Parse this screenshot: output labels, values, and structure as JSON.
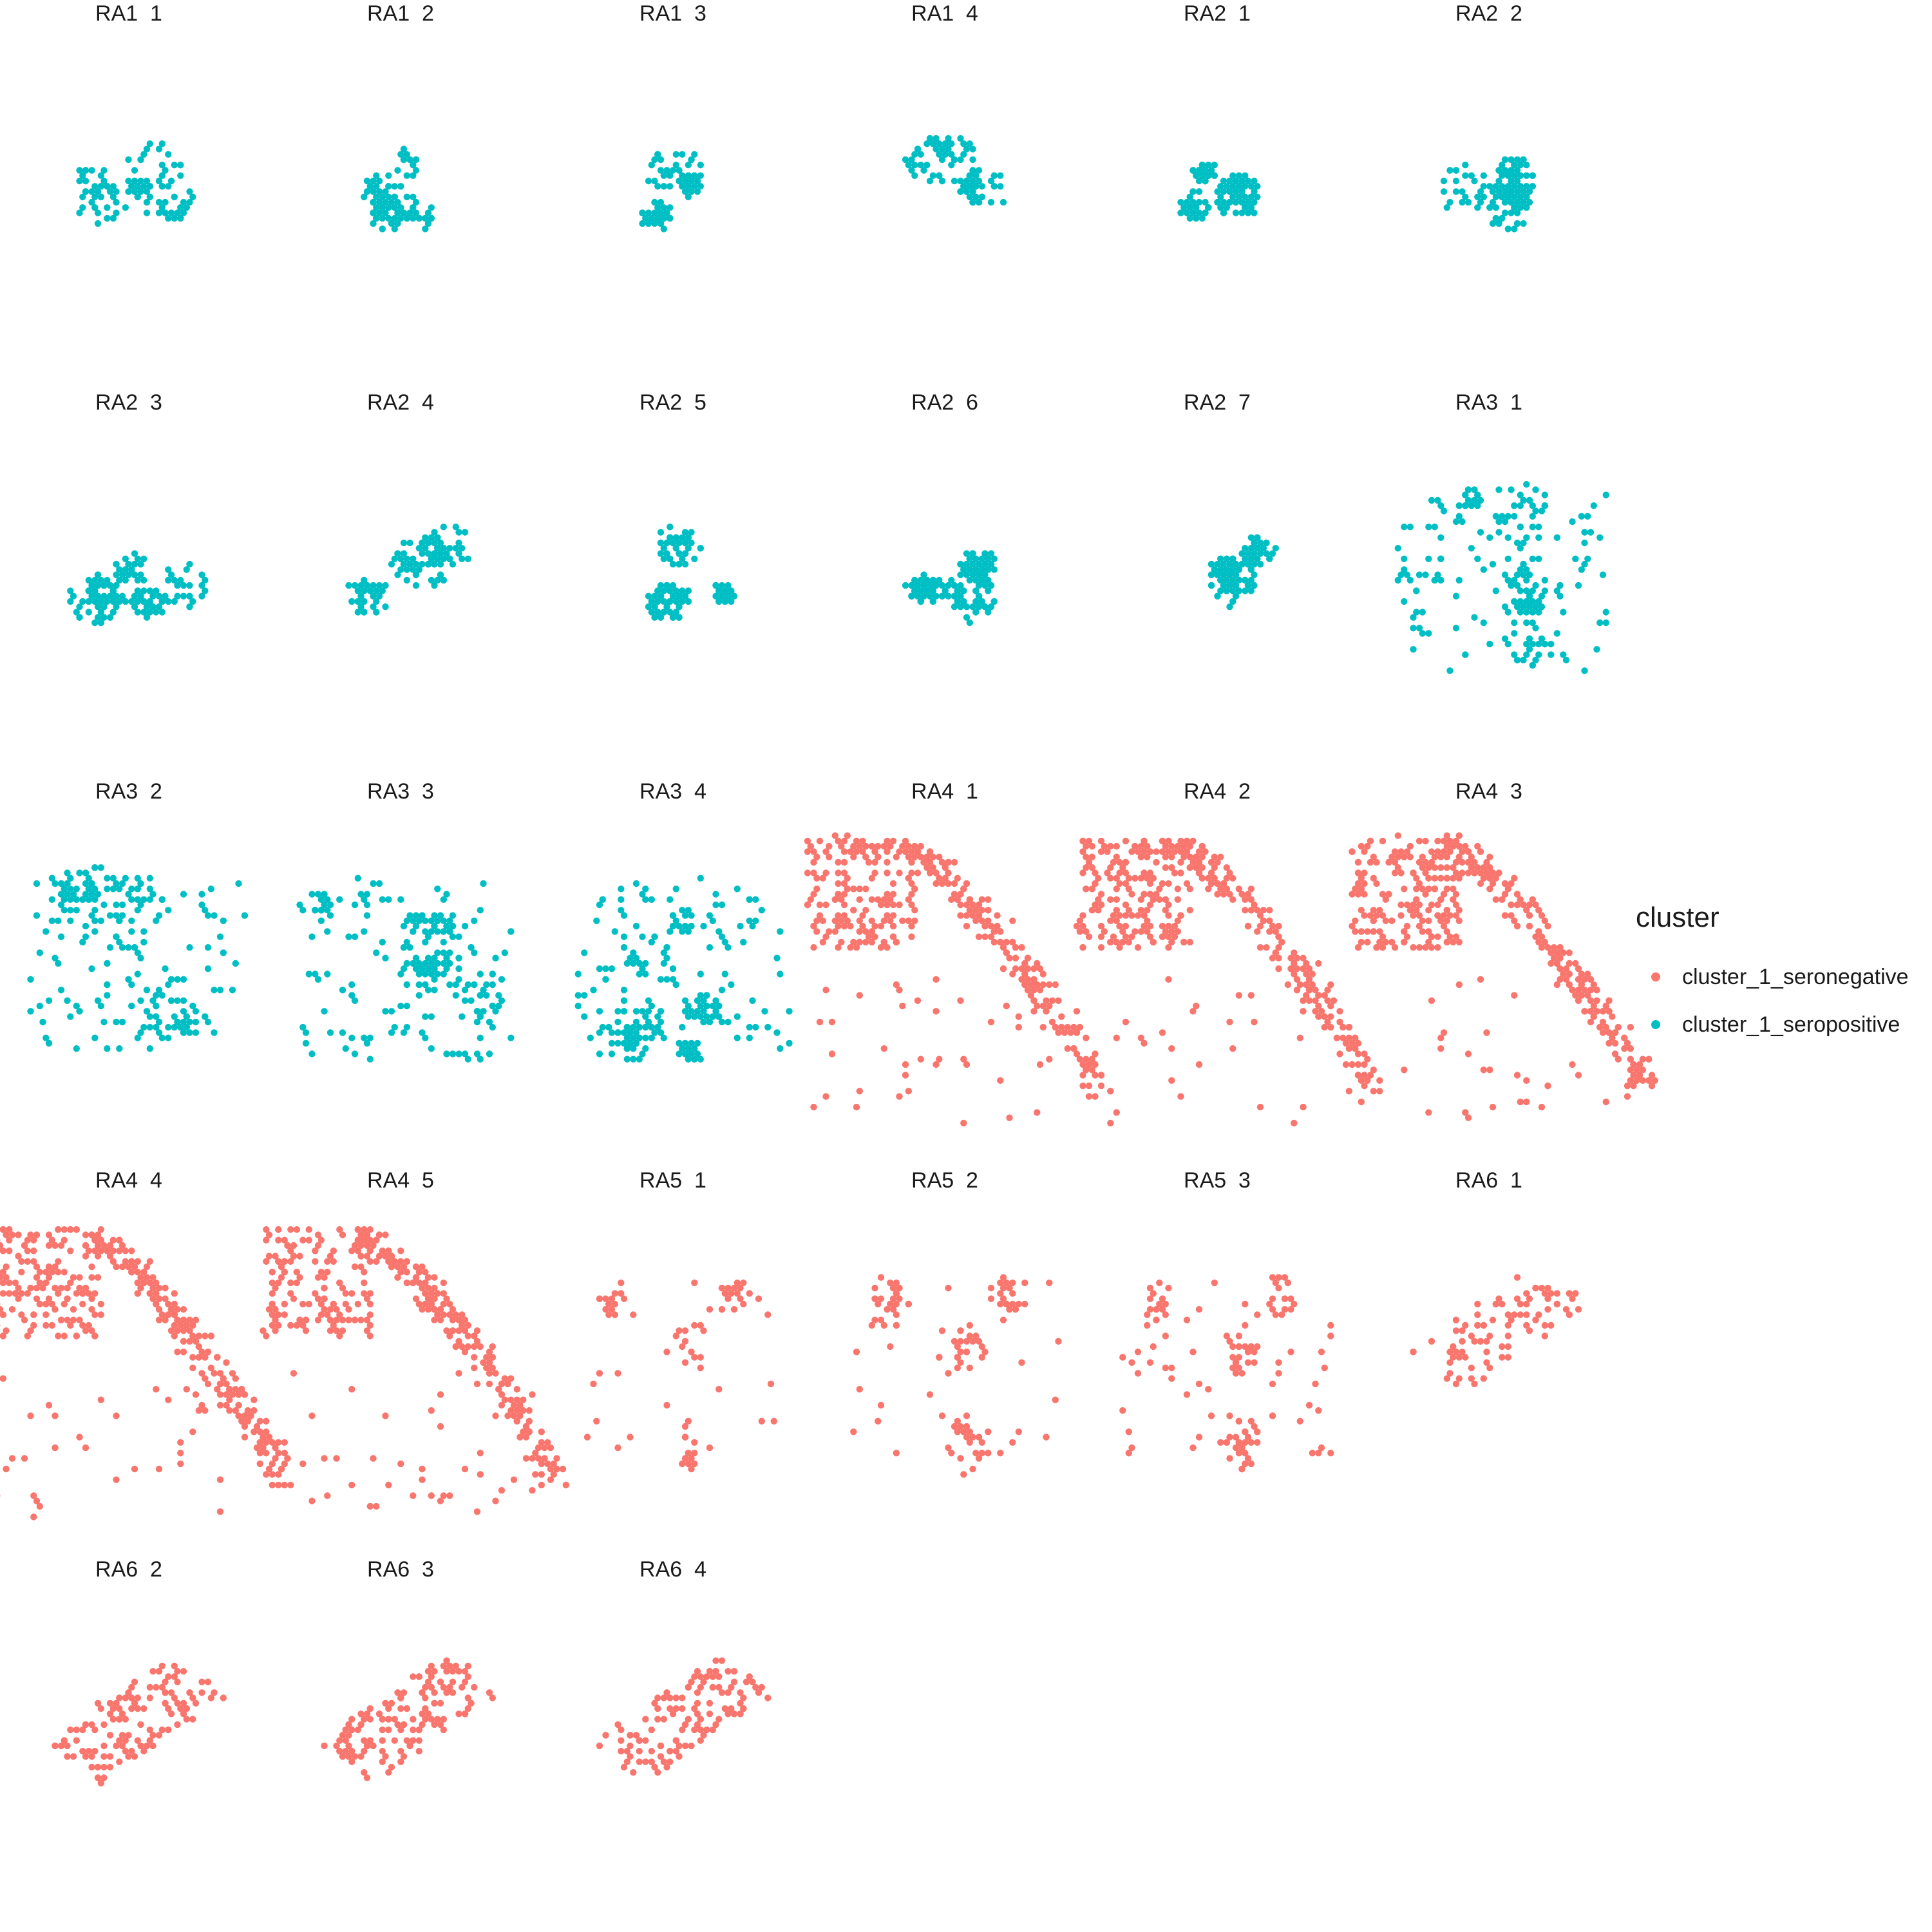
{
  "chart_data": {
    "type": "scatter",
    "title": "",
    "xlabel": "",
    "ylabel": "",
    "grid": false,
    "facet_columns": 6,
    "legend": {
      "title": "cluster",
      "position": "right",
      "entries": [
        {
          "name": "cluster_1_seronegative",
          "color": "#F8766D"
        },
        {
          "name": "cluster_1_seropositive",
          "color": "#00BFC4"
        }
      ]
    },
    "panels": [
      {
        "label": "RA1  1",
        "cluster": "cluster_1_seropositive",
        "pattern": "blob",
        "spots": 120
      },
      {
        "label": "RA1  2",
        "cluster": "cluster_1_seropositive",
        "pattern": "blob",
        "spots": 110
      },
      {
        "label": "RA1  3",
        "cluster": "cluster_1_seropositive",
        "pattern": "blob",
        "spots": 110
      },
      {
        "label": "RA1  4",
        "cluster": "cluster_1_seropositive",
        "pattern": "blob",
        "spots": 110
      },
      {
        "label": "RA2  1",
        "cluster": "cluster_1_seropositive",
        "pattern": "blob",
        "spots": 160
      },
      {
        "label": "RA2  2",
        "cluster": "cluster_1_seropositive",
        "pattern": "blob",
        "spots": 160
      },
      {
        "label": "RA2  3",
        "cluster": "cluster_1_seropositive",
        "pattern": "blob",
        "spots": 170
      },
      {
        "label": "RA2  4",
        "cluster": "cluster_1_seropositive",
        "pattern": "blob",
        "spots": 150
      },
      {
        "label": "RA2  5",
        "cluster": "cluster_1_seropositive",
        "pattern": "blob",
        "spots": 150
      },
      {
        "label": "RA2  6",
        "cluster": "cluster_1_seropositive",
        "pattern": "blob",
        "spots": 180
      },
      {
        "label": "RA2  7",
        "cluster": "cluster_1_seropositive",
        "pattern": "blob",
        "spots": 150
      },
      {
        "label": "RA3  1",
        "cluster": "cluster_1_seropositive",
        "pattern": "sparse-large",
        "spots": 230
      },
      {
        "label": "RA3  2",
        "cluster": "cluster_1_seropositive",
        "pattern": "sparse-large",
        "spots": 230
      },
      {
        "label": "RA3  3",
        "cluster": "cluster_1_seropositive",
        "pattern": "sparse-large",
        "spots": 240
      },
      {
        "label": "RA3  4",
        "cluster": "cluster_1_seropositive",
        "pattern": "sparse-large",
        "spots": 250
      },
      {
        "label": "RA4  1",
        "cluster": "cluster_1_seronegative",
        "pattern": "arc",
        "spots": 420
      },
      {
        "label": "RA4  2",
        "cluster": "cluster_1_seronegative",
        "pattern": "arc",
        "spots": 420
      },
      {
        "label": "RA4  3",
        "cluster": "cluster_1_seronegative",
        "pattern": "arc",
        "spots": 460
      },
      {
        "label": "RA4  4",
        "cluster": "cluster_1_seronegative",
        "pattern": "arc",
        "spots": 440
      },
      {
        "label": "RA4  5",
        "cluster": "cluster_1_seronegative",
        "pattern": "arc",
        "spots": 420
      },
      {
        "label": "RA5  1",
        "cluster": "cluster_1_seronegative",
        "pattern": "scatter-sparse",
        "spots": 80
      },
      {
        "label": "RA5  2",
        "cluster": "cluster_1_seronegative",
        "pattern": "scatter-sparse",
        "spots": 130
      },
      {
        "label": "RA5  3",
        "cluster": "cluster_1_seronegative",
        "pattern": "scatter-sparse",
        "spots": 140
      },
      {
        "label": "RA6  1",
        "cluster": "cluster_1_seronegative",
        "pattern": "patch",
        "spots": 90
      },
      {
        "label": "RA6  2",
        "cluster": "cluster_1_seronegative",
        "pattern": "patch",
        "spots": 130
      },
      {
        "label": "RA6  3",
        "cluster": "cluster_1_seronegative",
        "pattern": "patch",
        "spots": 150
      },
      {
        "label": "RA6  4",
        "cluster": "cluster_1_seronegative",
        "pattern": "patch",
        "spots": 130
      }
    ]
  }
}
